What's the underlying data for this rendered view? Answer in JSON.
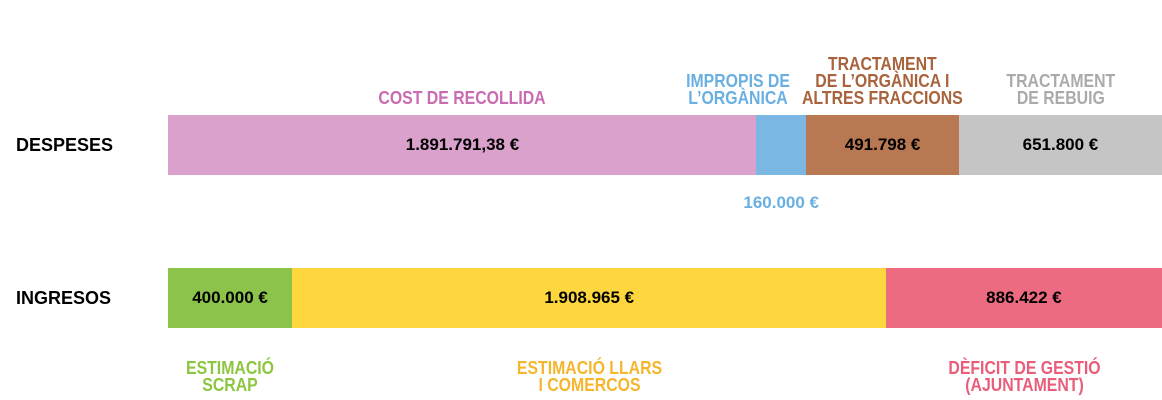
{
  "chart_data": [
    {
      "type": "bar",
      "orientation": "horizontal",
      "stacked": true,
      "categories": [
        "DESPESES"
      ],
      "series": [
        {
          "name": "COST DE RECOLLIDA",
          "color": "#d9a1cb",
          "label_color": "#c96bb1",
          "values": [
            1891791.38
          ],
          "value_labels": [
            "1.891.791,38 €"
          ]
        },
        {
          "name": "IMPROPIS DE\nL’ORGÀNICA",
          "color": "#7bb7e3",
          "label_color": "#6aafe1",
          "values": [
            160000
          ],
          "value_labels": [
            "160.000 €"
          ]
        },
        {
          "name": "TRACTAMENT\nDE L’ORGÀNICA I\nALTRES FRACCIONS",
          "color": "#b77852",
          "label_color": "#a8633c",
          "values": [
            491798
          ],
          "value_labels": [
            "491.798 €"
          ]
        },
        {
          "name": "TRACTAMENT\nDE REBUIG",
          "color": "#c5c5c5",
          "label_color": "#aaaaaa",
          "values": [
            651800
          ],
          "value_labels": [
            "651.800 €"
          ]
        }
      ]
    },
    {
      "type": "bar",
      "orientation": "horizontal",
      "stacked": true,
      "categories": [
        "INGRESOS"
      ],
      "series": [
        {
          "name": "ESTIMACIÓ\nSCRAP",
          "color": "#8bc34b",
          "label_color": "#8cc63f",
          "values": [
            400000
          ],
          "value_labels": [
            "400.000 €"
          ]
        },
        {
          "name": "ESTIMACIÓ LLARS\nI COMERCOS",
          "color": "#fdd73d",
          "label_color": "#f5b52c",
          "values": [
            1908965
          ],
          "value_labels": [
            "1.908.965 €"
          ]
        },
        {
          "name": "DÈFICIT DE GESTIÓ\n(AJUNTAMENT)",
          "color": "#ec6b81",
          "label_color": "#e85d79",
          "values": [
            886422
          ],
          "value_labels": [
            "886.422 €"
          ]
        }
      ]
    }
  ]
}
